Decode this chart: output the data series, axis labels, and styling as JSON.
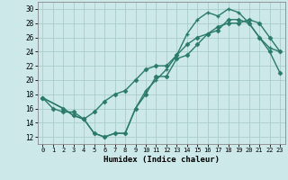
{
  "xlabel": "Humidex (Indice chaleur)",
  "bg_color": "#cce8e8",
  "grid_color": "#aacccc",
  "line_color": "#2a7a6a",
  "xlim": [
    -0.5,
    23.5
  ],
  "ylim": [
    11,
    31
  ],
  "xticks": [
    0,
    1,
    2,
    3,
    4,
    5,
    6,
    7,
    8,
    9,
    10,
    11,
    12,
    13,
    14,
    15,
    16,
    17,
    18,
    19,
    20,
    21,
    22,
    23
  ],
  "yticks": [
    12,
    14,
    16,
    18,
    20,
    22,
    24,
    26,
    28,
    30
  ],
  "curve1_x": [
    0,
    1,
    2,
    3,
    4,
    5,
    6,
    7,
    8,
    9,
    10,
    11,
    12,
    13,
    14,
    15,
    16,
    17,
    18,
    19,
    20,
    21,
    22,
    23
  ],
  "curve1_y": [
    17.5,
    16.0,
    15.5,
    15.5,
    14.5,
    15.5,
    17.0,
    18.0,
    18.5,
    20.0,
    21.5,
    22.0,
    22.0,
    23.5,
    25.0,
    26.0,
    26.5,
    27.5,
    28.0,
    28.0,
    28.5,
    28.0,
    26.0,
    24.0
  ],
  "curve2_x": [
    0,
    2,
    3,
    4,
    5,
    6,
    7,
    8,
    9,
    10,
    11,
    12,
    13,
    14,
    15,
    16,
    17,
    18,
    19,
    20,
    21,
    22,
    23
  ],
  "curve2_y": [
    17.5,
    16.0,
    15.0,
    14.5,
    12.5,
    12.0,
    12.5,
    12.5,
    16.0,
    18.0,
    20.5,
    20.5,
    23.0,
    23.5,
    25.0,
    26.5,
    27.0,
    28.5,
    28.5,
    28.0,
    26.0,
    24.0,
    21.0
  ],
  "curve3_x": [
    0,
    2,
    3,
    4,
    5,
    6,
    7,
    8,
    9,
    10,
    11,
    12,
    13,
    14,
    15,
    16,
    17,
    18,
    19,
    20,
    21,
    22,
    23
  ],
  "curve3_y": [
    17.5,
    16.0,
    15.0,
    14.5,
    12.5,
    12.0,
    12.5,
    12.5,
    16.0,
    18.5,
    20.0,
    21.5,
    23.5,
    26.5,
    28.5,
    29.5,
    29.0,
    30.0,
    29.5,
    28.0,
    26.0,
    24.5,
    24.0
  ]
}
